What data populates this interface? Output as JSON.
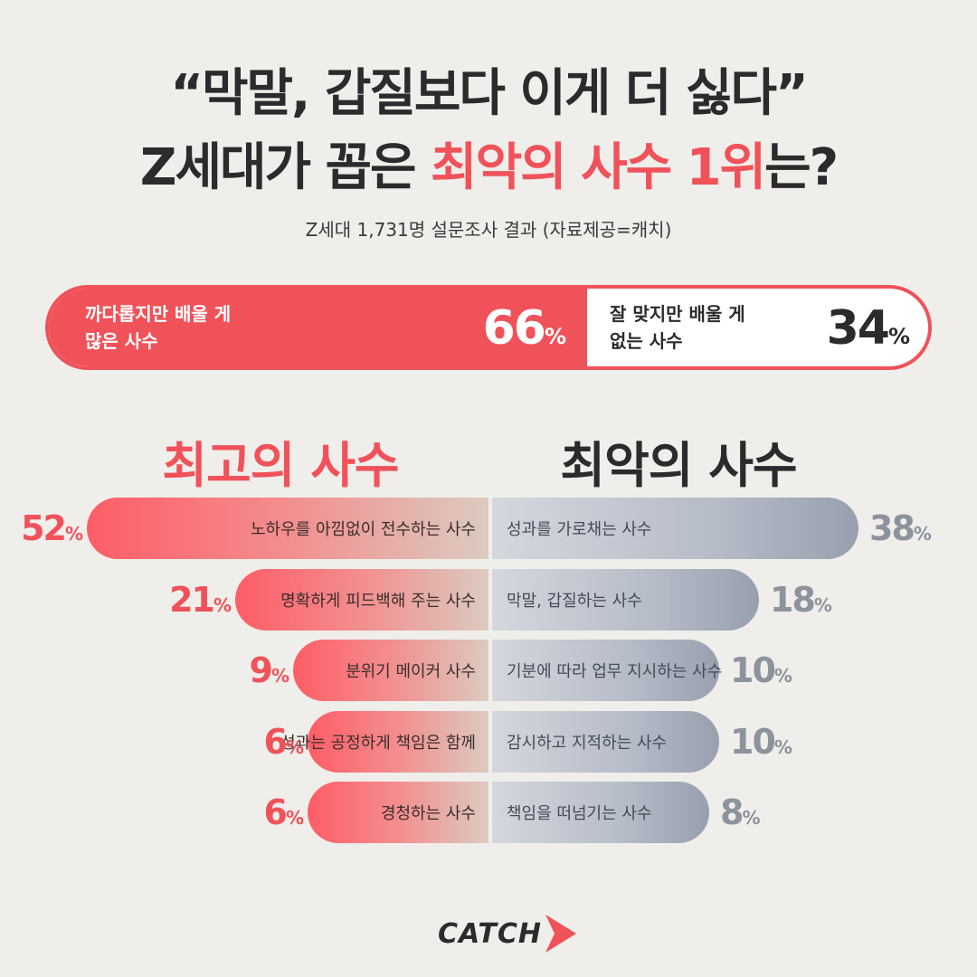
{
  "title": {
    "line1": "“막말, 갑질보다 이게 더 싫다”",
    "line2_pre": "Z세대가 꼽은 ",
    "line2_accent": "최악의 사수 1위",
    "line2_post": "는?"
  },
  "subtitle": "Z세대 1,731명 설문조사 결과 (자료제공=캐치)",
  "comparison": {
    "left_label_1": "까다롭지만 배울 게",
    "left_label_2": "많은 사수",
    "left_value": 66,
    "right_label_1": "잘 맞지만 배울 게",
    "right_label_2": "없는 사수",
    "right_value": 34,
    "pct_sign": "%"
  },
  "best_heading": "최고의 사수",
  "worst_heading": "최악의 사수",
  "colors": {
    "accent": "#f0525a",
    "dark": "#2b2b2b",
    "gray": "#8d939d"
  },
  "chart_data": {
    "type": "bar",
    "unit": "%",
    "series": [
      {
        "name": "최고의 사수",
        "categories": [
          "노하우를 아낌없이 전수하는 사수",
          "명확하게 피드백해 주는 사수",
          "분위기 메이커 사수",
          "성과는 공정하게 책임은 함께",
          "경청하는 사수"
        ],
        "values": [
          52,
          21,
          9,
          6,
          6
        ]
      },
      {
        "name": "최악의 사수",
        "categories": [
          "성과를 가로채는 사수",
          "막말, 갑질하는 사수",
          "기분에 따라 업무 지시하는 사수",
          "감시하고 지적하는 사수",
          "책임을 떠넘기는 사수"
        ],
        "values": [
          38,
          18,
          10,
          10,
          8
        ]
      }
    ]
  },
  "logo": {
    "text": "CATCH",
    "icon": "arrow-chevron-icon"
  }
}
